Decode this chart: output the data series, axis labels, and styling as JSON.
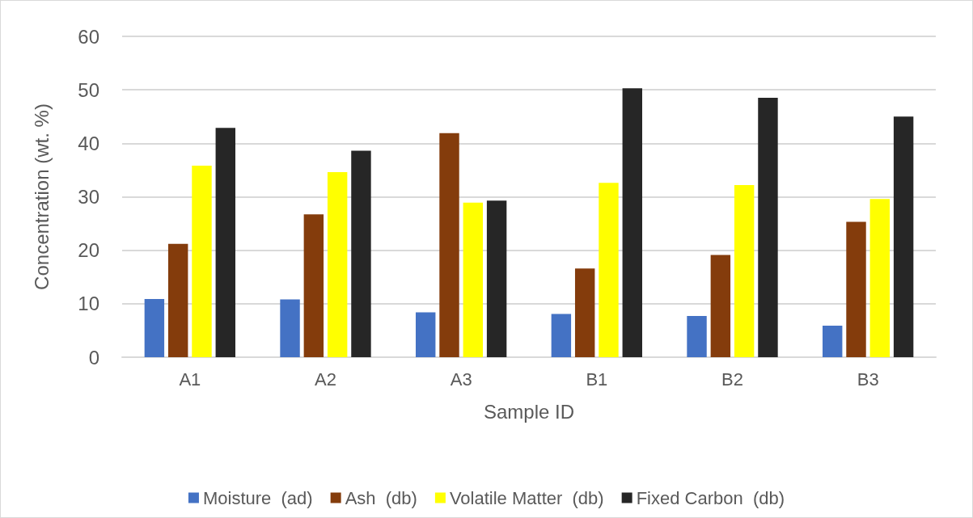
{
  "chart_data": {
    "type": "bar",
    "xlabel": "Sample ID",
    "ylabel": "Concentration (wt. %)",
    "categories": [
      "A1",
      "A2",
      "A3",
      "B1",
      "B2",
      "B3"
    ],
    "series": [
      {
        "name": "Moisture  (ad)",
        "color": "#4472c4",
        "values": [
          10.9,
          10.8,
          8.4,
          8.1,
          7.7,
          5.9
        ]
      },
      {
        "name": "Ash  (db)",
        "color": "#843c0c",
        "values": [
          21.2,
          26.7,
          41.9,
          16.6,
          19.1,
          25.3
        ]
      },
      {
        "name": "Volatile Matter  (db)",
        "color": "#ffff00",
        "values": [
          35.8,
          34.6,
          28.9,
          32.6,
          32.2,
          29.6
        ]
      },
      {
        "name": "Fixed Carbon  (db)",
        "color": "#262626",
        "values": [
          42.9,
          38.6,
          29.3,
          50.3,
          48.5,
          45.0
        ]
      }
    ],
    "ylim": [
      0,
      60
    ],
    "yticks": [
      0,
      10,
      20,
      30,
      40,
      50,
      60
    ],
    "grid": "y",
    "legend": "bottom"
  }
}
